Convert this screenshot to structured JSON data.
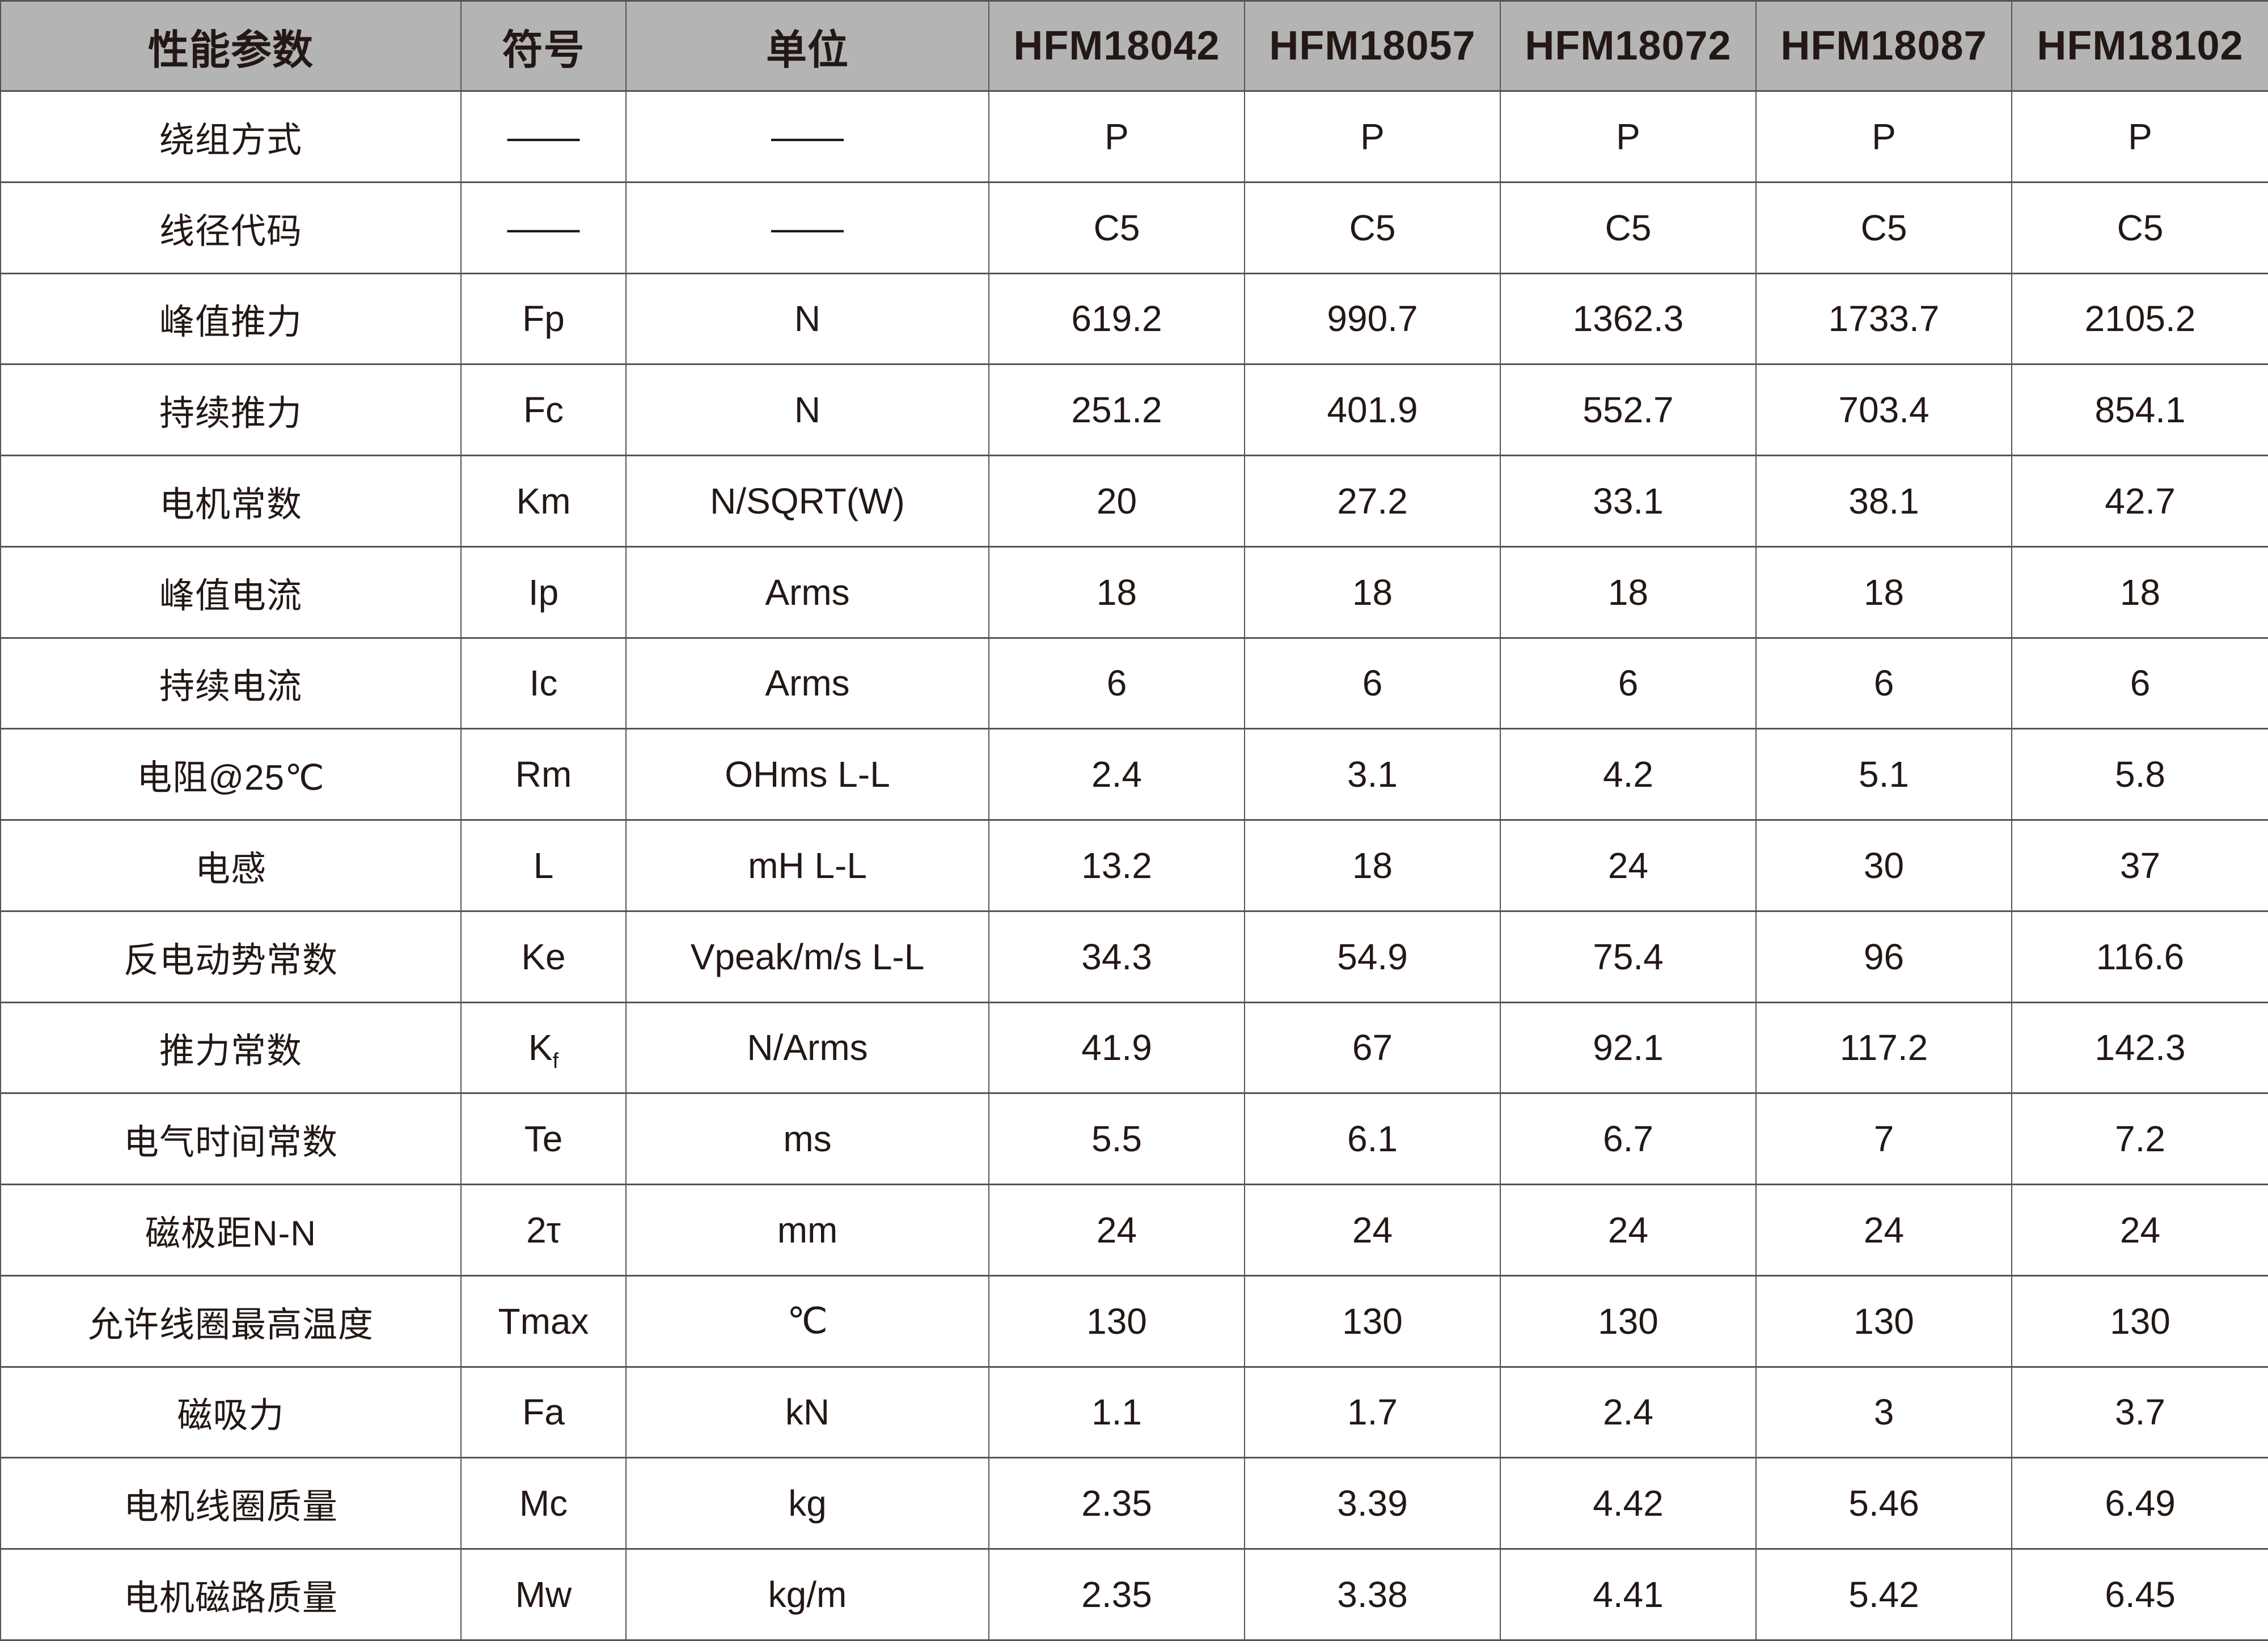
{
  "colors": {
    "header_background": "#b4b4b4",
    "text": "#231815",
    "grid_lines": "#595454",
    "page_background": "#ffffff"
  },
  "table": {
    "columns": [
      "性能参数",
      "符号",
      "单位",
      "HFM18042",
      "HFM18057",
      "HFM18072",
      "HFM18087",
      "HFM18102"
    ],
    "rows": [
      {
        "param": "绕组方式",
        "symbol": "——",
        "symbol_sub": "",
        "unit": "——",
        "values": [
          "P",
          "P",
          "P",
          "P",
          "P"
        ]
      },
      {
        "param": "线径代码",
        "symbol": "——",
        "symbol_sub": "",
        "unit": "——",
        "values": [
          "C5",
          "C5",
          "C5",
          "C5",
          "C5"
        ]
      },
      {
        "param": "峰值推力",
        "symbol": "Fp",
        "symbol_sub": "",
        "unit": "N",
        "values": [
          "619.2",
          "990.7",
          "1362.3",
          "1733.7",
          "2105.2"
        ]
      },
      {
        "param": "持续推力",
        "symbol": "Fc",
        "symbol_sub": "",
        "unit": "N",
        "values": [
          "251.2",
          "401.9",
          "552.7",
          "703.4",
          "854.1"
        ]
      },
      {
        "param": "电机常数",
        "symbol": "Km",
        "symbol_sub": "",
        "unit": "N/SQRT(W)",
        "values": [
          "20",
          "27.2",
          "33.1",
          "38.1",
          "42.7"
        ]
      },
      {
        "param": "峰值电流",
        "symbol": "Ip",
        "symbol_sub": "",
        "unit": "Arms",
        "values": [
          "18",
          "18",
          "18",
          "18",
          "18"
        ]
      },
      {
        "param": "持续电流",
        "symbol": "Ic",
        "symbol_sub": "",
        "unit": "Arms",
        "values": [
          "6",
          "6",
          "6",
          "6",
          "6"
        ]
      },
      {
        "param": "电阻@25℃",
        "symbol": "Rm",
        "symbol_sub": "",
        "unit": "OHms L-L",
        "values": [
          "2.4",
          "3.1",
          "4.2",
          "5.1",
          "5.8"
        ]
      },
      {
        "param": "电感",
        "symbol": "L",
        "symbol_sub": "",
        "unit": "mH L-L",
        "values": [
          "13.2",
          "18",
          "24",
          "30",
          "37"
        ]
      },
      {
        "param": "反电动势常数",
        "symbol": "Ke",
        "symbol_sub": "",
        "unit": "Vpeak/m/s L-L",
        "values": [
          "34.3",
          "54.9",
          "75.4",
          "96",
          "116.6"
        ]
      },
      {
        "param": "推力常数",
        "symbol": "K",
        "symbol_sub": "f",
        "unit": "N/Arms",
        "values": [
          "41.9",
          "67",
          "92.1",
          "117.2",
          "142.3"
        ]
      },
      {
        "param": "电气时间常数",
        "symbol": "Te",
        "symbol_sub": "",
        "unit": "ms",
        "values": [
          "5.5",
          "6.1",
          "6.7",
          "7",
          "7.2"
        ]
      },
      {
        "param": "磁极距N-N",
        "symbol": "2τ",
        "symbol_sub": "",
        "unit": "mm",
        "values": [
          "24",
          "24",
          "24",
          "24",
          "24"
        ]
      },
      {
        "param": "允许线圈最高温度",
        "symbol": "Tmax",
        "symbol_sub": "",
        "unit": "℃",
        "values": [
          "130",
          "130",
          "130",
          "130",
          "130"
        ]
      },
      {
        "param": "磁吸力",
        "symbol": "Fa",
        "symbol_sub": "",
        "unit": "kN",
        "values": [
          "1.1",
          "1.7",
          "2.4",
          "3",
          "3.7"
        ]
      },
      {
        "param": "电机线圈质量",
        "symbol": "Mc",
        "symbol_sub": "",
        "unit": "kg",
        "values": [
          "2.35",
          "3.39",
          "4.42",
          "5.46",
          "6.49"
        ]
      },
      {
        "param": "电机磁路质量",
        "symbol": "Mw",
        "symbol_sub": "",
        "unit": "kg/m",
        "values": [
          "2.35",
          "3.38",
          "4.41",
          "5.42",
          "6.45"
        ]
      }
    ]
  }
}
